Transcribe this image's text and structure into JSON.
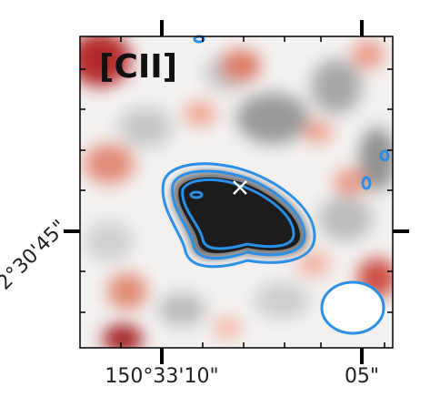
{
  "chart_data": {
    "type": "heatmap",
    "title": "[CII]",
    "description_axes": "sky coordinates (RA, Dec)",
    "x_axis": {
      "label": "",
      "tick_labels": [
        "150°33'10\"",
        "05\""
      ],
      "tick_values_arcsec_offset": [
        0,
        5
      ]
    },
    "y_axis": {
      "label": "",
      "tick_labels": [
        "2°30'45\""
      ],
      "tick_values_arcsec_offset": [
        0
      ]
    },
    "colormap": "red-white-grey (RdGy reversed)",
    "contour_levels_sigma": [
      3,
      4,
      5
    ],
    "contour_color": "#2b8fe6",
    "beam": {
      "shape": "ellipse",
      "fill": "#ffffff",
      "edge_color": "#2b8fe6"
    },
    "marker": {
      "symbol": "x",
      "color": "#ffffff",
      "label": ""
    },
    "source": {
      "emission": "[CII] line detection",
      "peak_region": "center of map"
    }
  }
}
